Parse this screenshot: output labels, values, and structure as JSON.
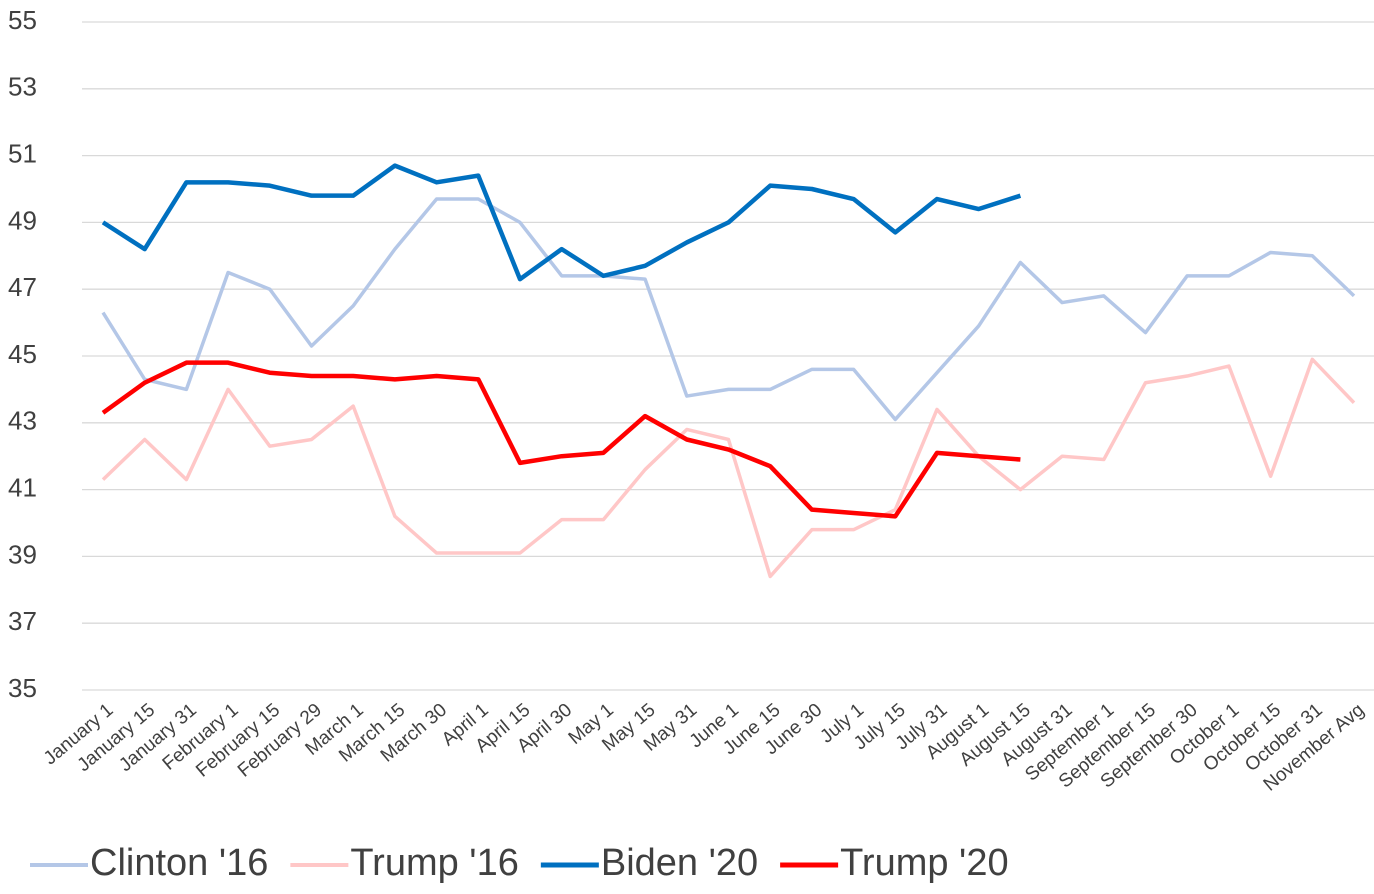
{
  "chart_data": {
    "type": "line",
    "categories": [
      "January 1",
      "January 15",
      "January 31",
      "February 1",
      "February 15",
      "February 29",
      "March 1",
      "March 15",
      "March 30",
      "April 1",
      "April 15",
      "April 30",
      "May 1",
      "May 15",
      "May 31",
      "June 1",
      "June 15",
      "June 30",
      "July 1",
      "July 15",
      "July 31",
      "August 1",
      "August 15",
      "August 31",
      "September 1",
      "September 15",
      "September 30",
      "October 1",
      "October 15",
      "October 31",
      "November Avg"
    ],
    "series": [
      {
        "name": "Clinton '16",
        "color": "#b4c7e7",
        "values": [
          46.3,
          44.3,
          44.0,
          47.5,
          47.0,
          45.3,
          46.5,
          48.2,
          49.7,
          49.7,
          49.0,
          47.4,
          47.4,
          47.3,
          43.8,
          44.0,
          44.0,
          44.6,
          44.6,
          43.1,
          44.5,
          45.9,
          47.8,
          46.6,
          46.8,
          45.7,
          47.4,
          47.4,
          48.1,
          48.0,
          46.8
        ]
      },
      {
        "name": "Trump '16",
        "color": "#ffc7c7",
        "values": [
          41.3,
          42.5,
          41.3,
          44.0,
          42.3,
          42.5,
          43.5,
          40.2,
          39.1,
          39.1,
          39.1,
          40.1,
          40.1,
          41.6,
          42.8,
          42.5,
          38.4,
          39.8,
          39.8,
          40.4,
          43.4,
          42.0,
          41.0,
          42.0,
          41.9,
          44.2,
          44.4,
          44.7,
          41.4,
          44.9,
          43.6
        ]
      },
      {
        "name": "Biden '20",
        "color": "#0070c0",
        "values": [
          49.0,
          48.2,
          50.2,
          50.2,
          50.1,
          49.8,
          49.8,
          50.7,
          50.2,
          50.4,
          47.3,
          48.2,
          47.4,
          47.7,
          48.4,
          49.0,
          50.1,
          50.0,
          49.7,
          48.7,
          49.7,
          49.4,
          49.8,
          null,
          null,
          null,
          null,
          null,
          null,
          null,
          null
        ]
      },
      {
        "name": "Trump '20",
        "color": "#ff0000",
        "values": [
          43.3,
          44.2,
          44.8,
          44.8,
          44.5,
          44.4,
          44.4,
          44.3,
          44.4,
          44.3,
          41.8,
          42.0,
          42.1,
          43.2,
          42.5,
          42.2,
          41.7,
          40.4,
          40.3,
          40.2,
          42.1,
          42.0,
          41.9,
          null,
          null,
          null,
          null,
          null,
          null,
          null,
          null
        ]
      }
    ],
    "ylim": [
      35,
      55
    ],
    "yticks": [
      35,
      37,
      39,
      41,
      43,
      45,
      47,
      49,
      51,
      53,
      55
    ],
    "grid": true
  }
}
